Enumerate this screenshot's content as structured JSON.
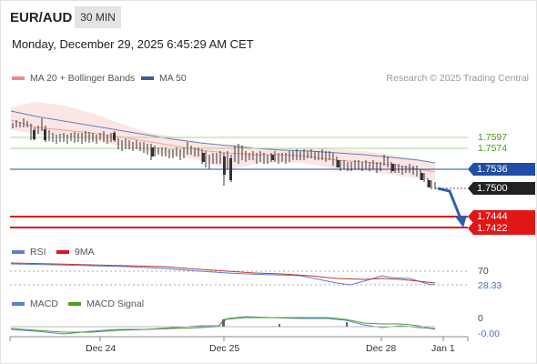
{
  "header": {
    "pair": "EUR/AUD",
    "timeframe": "30 MIN",
    "timestamp": "Monday, December 29, 2025 6:45:29 AM CET"
  },
  "legend": {
    "bollinger_label": "MA 20 + Bollinger Bands",
    "ma50_label": "MA 50",
    "research": "Research © 2025 Trading Central"
  },
  "levels": {
    "r2": "1.7597",
    "r1": "1.7574",
    "pivot": "1.7536",
    "last": "1.7500",
    "s1": "1.7444",
    "s2": "1.7422"
  },
  "rsi_panel": {
    "rsi_label": "RSI",
    "ma_label": "9MA",
    "level_label": "70",
    "value": "28.33"
  },
  "macd_panel": {
    "macd_label": "MACD",
    "signal_label": "MACD Signal",
    "zero_label": "0",
    "value": "-0.00"
  },
  "xaxis": {
    "labels": [
      "Dec 24",
      "Dec 25",
      "Dec 28",
      "Jan 1"
    ]
  },
  "colors": {
    "bollinger": "#f08a8a",
    "ma50": "#3a5a9a",
    "resistance": "#a8d890",
    "pivot": "#1e4ea6",
    "support": "#e11616",
    "rsi": "#5b7fd6",
    "rsi_ma": "#e11616",
    "macd": "#5b7fd6",
    "macd_signal": "#4aa01e"
  }
}
